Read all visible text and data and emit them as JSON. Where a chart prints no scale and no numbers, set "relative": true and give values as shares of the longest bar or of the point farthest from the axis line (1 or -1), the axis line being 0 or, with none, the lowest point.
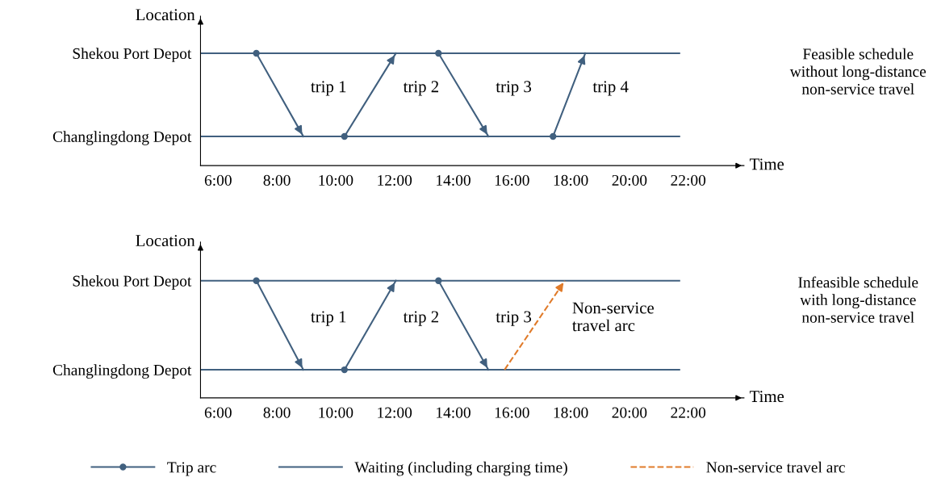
{
  "chart_data": [
    {
      "type": "line",
      "relative": true,
      "xlabel": "Time",
      "ylabel": "Location",
      "xlim": [
        5.4,
        23.9
      ],
      "grid": false,
      "legend": false,
      "xticks": [
        {
          "value": 6,
          "label": "6:00"
        },
        {
          "value": 8,
          "label": "8:00"
        },
        {
          "value": 10,
          "label": "10:00"
        },
        {
          "value": 12,
          "label": "12:00"
        },
        {
          "value": 14,
          "label": "14:00"
        },
        {
          "value": 16,
          "label": "16:00"
        },
        {
          "value": 18,
          "label": "18:00"
        },
        {
          "value": 20,
          "label": "20:00"
        },
        {
          "value": 22,
          "label": "22:00"
        }
      ],
      "series": [
        {
          "color": "#41607f",
          "marker": "none",
          "line_style": "solid",
          "x": [
            5.4,
            21.7
          ],
          "values": [
            1,
            1
          ]
        },
        {
          "color": "#41607f",
          "marker": "none",
          "line_style": "solid",
          "x": [
            5.4,
            21.7
          ],
          "values": [
            0.26,
            0.26
          ]
        },
        {
          "color": "#41607f",
          "marker": "circle",
          "line_style": "solid",
          "x": [
            7.3,
            8.9
          ],
          "values": [
            1,
            0.26
          ]
        },
        {
          "color": "#41607f",
          "marker": "circle",
          "line_style": "solid",
          "x": [
            10.3,
            12.05
          ],
          "values": [
            0.26,
            1
          ]
        },
        {
          "color": "#41607f",
          "marker": "circle",
          "line_style": "solid",
          "x": [
            13.5,
            15.2
          ],
          "values": [
            1,
            0.26
          ]
        },
        {
          "color": "#41607f",
          "marker": "circle",
          "line_style": "solid",
          "x": [
            17.4,
            18.5
          ],
          "values": [
            0.26,
            1
          ]
        }
      ],
      "annotations": [
        "Shekou Port Depot",
        "Changlingdong Depot",
        "trip 1",
        "trip 2",
        "trip 3",
        "trip 4",
        "Feasible schedule\nwithout long-distance\nnon-service travel"
      ]
    },
    {
      "type": "line",
      "relative": true,
      "xlabel": "Time",
      "ylabel": "Location",
      "xlim": [
        5.4,
        23.9
      ],
      "grid": false,
      "legend": "bottom",
      "xticks": [
        {
          "value": 6,
          "label": "6:00"
        },
        {
          "value": 8,
          "label": "8:00"
        },
        {
          "value": 10,
          "label": "10:00"
        },
        {
          "value": 12,
          "label": "12:00"
        },
        {
          "value": 14,
          "label": "14:00"
        },
        {
          "value": 16,
          "label": "16:00"
        },
        {
          "value": 18,
          "label": "18:00"
        },
        {
          "value": 20,
          "label": "20:00"
        },
        {
          "value": 22,
          "label": "22:00"
        }
      ],
      "series": [
        {
          "name": "Trip arc",
          "color": "#41607f",
          "marker": "circle",
          "line_style": "solid",
          "x": [
            7.3,
            8.9
          ],
          "values": [
            1,
            0.24
          ]
        },
        {
          "color": "#41607f",
          "marker": "circle",
          "line_style": "solid",
          "x": [
            10.3,
            12.05
          ],
          "values": [
            0.24,
            1
          ]
        },
        {
          "color": "#41607f",
          "marker": "circle",
          "line_style": "solid",
          "x": [
            13.5,
            15.2
          ],
          "values": [
            1,
            0.24
          ]
        },
        {
          "name": "Waiting (including charging time)",
          "color": "#41607f",
          "marker": "none",
          "line_style": "solid",
          "x": [
            5.4,
            21.7
          ],
          "values": [
            1,
            1
          ]
        },
        {
          "color": "#41607f",
          "marker": "none",
          "line_style": "solid",
          "x": [
            5.4,
            21.7
          ],
          "values": [
            0.24,
            0.24
          ]
        },
        {
          "name": "Non-service travel arc",
          "color": "#e07b2a",
          "marker": "none",
          "line_style": "dashed",
          "x": [
            15.75,
            17.8
          ],
          "values": [
            0.24,
            1
          ]
        }
      ],
      "annotations": [
        "Shekou Port Depot",
        "Changlingdong Depot",
        "trip 1",
        "trip 2",
        "trip 3",
        "Non-service\ntravel arc",
        "Infeasible schedule\nwith long-distance\nnon-service travel"
      ]
    }
  ]
}
